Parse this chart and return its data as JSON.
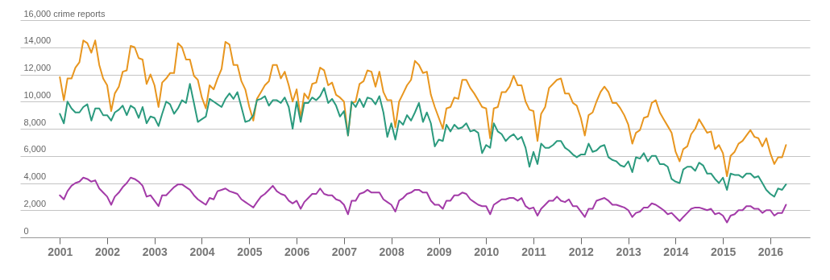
{
  "chart_data": {
    "type": "line",
    "x": [
      "2001-01",
      "2001-02",
      "2001-03",
      "2001-04",
      "2001-05",
      "2001-06",
      "2001-07",
      "2001-08",
      "2001-09",
      "2001-10",
      "2001-11",
      "2001-12",
      "2002-01",
      "2002-02",
      "2002-03",
      "2002-04",
      "2002-05",
      "2002-06",
      "2002-07",
      "2002-08",
      "2002-09",
      "2002-10",
      "2002-11",
      "2002-12",
      "2003-01",
      "2003-02",
      "2003-03",
      "2003-04",
      "2003-05",
      "2003-06",
      "2003-07",
      "2003-08",
      "2003-09",
      "2003-10",
      "2003-11",
      "2003-12",
      "2004-01",
      "2004-02",
      "2004-03",
      "2004-04",
      "2004-05",
      "2004-06",
      "2004-07",
      "2004-08",
      "2004-09",
      "2004-10",
      "2004-11",
      "2004-12",
      "2005-01",
      "2005-02",
      "2005-03",
      "2005-04",
      "2005-05",
      "2005-06",
      "2005-07",
      "2005-08",
      "2005-09",
      "2005-10",
      "2005-11",
      "2005-12",
      "2006-01",
      "2006-02",
      "2006-03",
      "2006-04",
      "2006-05",
      "2006-06",
      "2006-07",
      "2006-08",
      "2006-09",
      "2006-10",
      "2006-11",
      "2006-12",
      "2007-01",
      "2007-02",
      "2007-03",
      "2007-04",
      "2007-05",
      "2007-06",
      "2007-07",
      "2007-08",
      "2007-09",
      "2007-10",
      "2007-11",
      "2007-12",
      "2008-01",
      "2008-02",
      "2008-03",
      "2008-04",
      "2008-05",
      "2008-06",
      "2008-07",
      "2008-08",
      "2008-09",
      "2008-10",
      "2008-11",
      "2008-12",
      "2009-01",
      "2009-02",
      "2009-03",
      "2009-04",
      "2009-05",
      "2009-06",
      "2009-07",
      "2009-08",
      "2009-09",
      "2009-10",
      "2009-11",
      "2009-12",
      "2010-01",
      "2010-02",
      "2010-03",
      "2010-04",
      "2010-05",
      "2010-06",
      "2010-07",
      "2010-08",
      "2010-09",
      "2010-10",
      "2010-11",
      "2010-12",
      "2011-01",
      "2011-02",
      "2011-03",
      "2011-04",
      "2011-05",
      "2011-06",
      "2011-07",
      "2011-08",
      "2011-09",
      "2011-10",
      "2011-11",
      "2011-12",
      "2012-01",
      "2012-02",
      "2012-03",
      "2012-04",
      "2012-05",
      "2012-06",
      "2012-07",
      "2012-08",
      "2012-09",
      "2012-10",
      "2012-11",
      "2012-12",
      "2013-01",
      "2013-02",
      "2013-03",
      "2013-04",
      "2013-05",
      "2013-06",
      "2013-07",
      "2013-08",
      "2013-09",
      "2013-10",
      "2013-11",
      "2013-12",
      "2014-01",
      "2014-02",
      "2014-03",
      "2014-04",
      "2014-05",
      "2014-06",
      "2014-07",
      "2014-08",
      "2014-09",
      "2014-10",
      "2014-11",
      "2014-12",
      "2015-01",
      "2015-02",
      "2015-03",
      "2015-04",
      "2015-05",
      "2015-06",
      "2015-07",
      "2015-08",
      "2015-09",
      "2015-10",
      "2015-11",
      "2015-12",
      "2016-01",
      "2016-02",
      "2016-03",
      "2016-04",
      "2016-05"
    ],
    "series": [
      {
        "color": "#e8961f",
        "values": [
          11800,
          10100,
          11700,
          11700,
          12500,
          12900,
          14500,
          14300,
          13600,
          14500,
          12700,
          11700,
          11200,
          9300,
          10600,
          11100,
          12200,
          12300,
          14100,
          14000,
          13200,
          13100,
          11300,
          12000,
          11200,
          9600,
          11400,
          11700,
          12100,
          12100,
          14300,
          14000,
          13100,
          13100,
          11900,
          11600,
          10300,
          9500,
          11200,
          10900,
          11700,
          12400,
          14400,
          14200,
          12700,
          12700,
          11500,
          10900,
          9600,
          8600,
          10200,
          10700,
          11200,
          11500,
          12700,
          12700,
          11700,
          12200,
          11200,
          10000,
          10900,
          8800,
          10600,
          10200,
          11300,
          11400,
          12500,
          12300,
          11200,
          11400,
          10500,
          10300,
          10000,
          7500,
          9900,
          10000,
          11300,
          11500,
          12300,
          12200,
          11100,
          12200,
          10700,
          10100,
          10100,
          8100,
          10000,
          10600,
          11200,
          11600,
          13000,
          12700,
          12100,
          12200,
          10500,
          9600,
          8800,
          8000,
          9500,
          9600,
          10300,
          10200,
          11600,
          11600,
          11000,
          10600,
          10100,
          9600,
          9500,
          7300,
          9500,
          9600,
          10700,
          10700,
          11100,
          11900,
          11200,
          11200,
          10000,
          9400,
          9300,
          7100,
          9100,
          9600,
          11000,
          11300,
          11600,
          11700,
          10600,
          10600,
          9900,
          9700,
          8800,
          7500,
          9000,
          9200,
          10000,
          10700,
          11100,
          10700,
          9900,
          9900,
          9500,
          9000,
          8300,
          6900,
          7700,
          7900,
          8800,
          8900,
          9900,
          10100,
          9200,
          8700,
          8200,
          7700,
          6300,
          5600,
          6500,
          6700,
          7600,
          8000,
          8700,
          8200,
          7700,
          7800,
          6500,
          6800,
          6200,
          4500,
          6000,
          6300,
          6900,
          7100,
          7500,
          7900,
          7400,
          7300,
          6700,
          7300,
          6200,
          5400,
          5900,
          5900,
          6800
        ]
      },
      {
        "color": "#2b9a7e",
        "values": [
          9100,
          8400,
          10000,
          9500,
          9200,
          9200,
          9600,
          9800,
          8600,
          9500,
          9500,
          9000,
          9000,
          8600,
          9200,
          9400,
          9700,
          9000,
          9700,
          9500,
          8800,
          9600,
          8400,
          8900,
          8800,
          8200,
          9100,
          10000,
          9800,
          9100,
          9500,
          10100,
          9900,
          11300,
          9900,
          8500,
          8700,
          8900,
          10200,
          10000,
          9800,
          9600,
          10200,
          10600,
          10200,
          10700,
          9600,
          8500,
          8600,
          9000,
          10100,
          10200,
          10400,
          9700,
          10100,
          10100,
          9900,
          10300,
          9600,
          8000,
          10000,
          8500,
          9900,
          9900,
          10300,
          10100,
          10400,
          11000,
          9900,
          10200,
          9700,
          8900,
          9300,
          7500,
          10000,
          9600,
          10200,
          9600,
          10300,
          10200,
          9800,
          10400,
          9200,
          7400,
          8400,
          7200,
          8600,
          8300,
          9000,
          8600,
          9200,
          9900,
          8500,
          9200,
          8400,
          6700,
          7200,
          7100,
          8300,
          7800,
          8300,
          8000,
          8100,
          8400,
          7800,
          7900,
          7700,
          6200,
          6800,
          6600,
          8400,
          7800,
          7600,
          7100,
          7400,
          7600,
          7200,
          7400,
          6600,
          5200,
          6300,
          5400,
          6900,
          6600,
          6600,
          6800,
          7100,
          7100,
          6600,
          6400,
          6100,
          5900,
          6100,
          6100,
          6900,
          6300,
          6400,
          6700,
          6800,
          5900,
          5700,
          5600,
          5300,
          5200,
          5600,
          4800,
          5900,
          5800,
          6200,
          5600,
          6000,
          6000,
          5400,
          5400,
          5200,
          4300,
          4100,
          4000,
          5000,
          5200,
          5200,
          4900,
          5500,
          5300,
          4700,
          4700,
          4300,
          4000,
          4400,
          3500,
          4700,
          4600,
          4600,
          4400,
          4700,
          4700,
          4400,
          4500,
          4000,
          3500,
          3200,
          3000,
          3600,
          3500,
          3900
        ]
      },
      {
        "color": "#a33ba8",
        "values": [
          3100,
          2800,
          3400,
          3800,
          4000,
          4100,
          4400,
          4300,
          4100,
          4200,
          3600,
          3300,
          3000,
          2400,
          3000,
          3300,
          3700,
          4000,
          4400,
          4300,
          4100,
          3800,
          3000,
          3100,
          2700,
          2300,
          3100,
          3100,
          3400,
          3700,
          3900,
          3900,
          3700,
          3500,
          3100,
          2800,
          2600,
          2400,
          2900,
          2800,
          3400,
          3500,
          3600,
          3400,
          3300,
          3200,
          2800,
          2600,
          2400,
          2200,
          2600,
          3000,
          3200,
          3500,
          3800,
          3400,
          3200,
          3100,
          2700,
          2500,
          2700,
          2100,
          2600,
          2900,
          3200,
          3200,
          3600,
          3200,
          3100,
          3100,
          2800,
          2700,
          2400,
          1700,
          2700,
          2700,
          3200,
          3300,
          3500,
          3300,
          3300,
          3300,
          2800,
          2600,
          2400,
          1900,
          2700,
          2900,
          3200,
          3300,
          3500,
          3500,
          3300,
          3300,
          2700,
          2400,
          2400,
          2100,
          2700,
          2700,
          3100,
          3100,
          3300,
          3200,
          2800,
          2600,
          2400,
          2300,
          2300,
          1700,
          2400,
          2600,
          2800,
          2800,
          2900,
          2900,
          2700,
          2900,
          2300,
          2100,
          2200,
          1600,
          2100,
          2400,
          2700,
          2700,
          3000,
          2700,
          2600,
          2800,
          2300,
          2300,
          1900,
          1500,
          2100,
          2100,
          2700,
          2800,
          2900,
          2700,
          2400,
          2400,
          2300,
          2200,
          2000,
          1500,
          1800,
          1900,
          2200,
          2200,
          2500,
          2400,
          2200,
          2000,
          1700,
          1800,
          1500,
          1200,
          1500,
          1800,
          2100,
          2200,
          2200,
          2100,
          2000,
          2100,
          1700,
          1800,
          1600,
          1100,
          1600,
          1700,
          2000,
          2000,
          2300,
          2300,
          2100,
          2100,
          1800,
          2000,
          2000,
          1600,
          1800,
          1800,
          2400
        ]
      }
    ],
    "xlim": [
      "2000-03",
      "2016-11"
    ],
    "xticks": [
      "2001",
      "2002",
      "2003",
      "2004",
      "2005",
      "2006",
      "2007",
      "2008",
      "2009",
      "2010",
      "2011",
      "2012",
      "2013",
      "2014",
      "2015",
      "2016"
    ],
    "ylim": [
      0,
      16000
    ],
    "yticks": [
      0,
      {
        "value": 2000,
        "label": "2,000"
      },
      {
        "value": 4000,
        "label": "4,000"
      },
      {
        "value": 6000,
        "label": "6,000"
      },
      {
        "value": 8000,
        "label": "8,000"
      },
      {
        "value": 10000,
        "label": "10,000"
      },
      {
        "value": 12000,
        "label": "12,000"
      },
      {
        "value": 14000,
        "label": "14,000"
      },
      {
        "value": 16000,
        "label": "16,000 crime reports"
      }
    ],
    "grid": "y"
  }
}
